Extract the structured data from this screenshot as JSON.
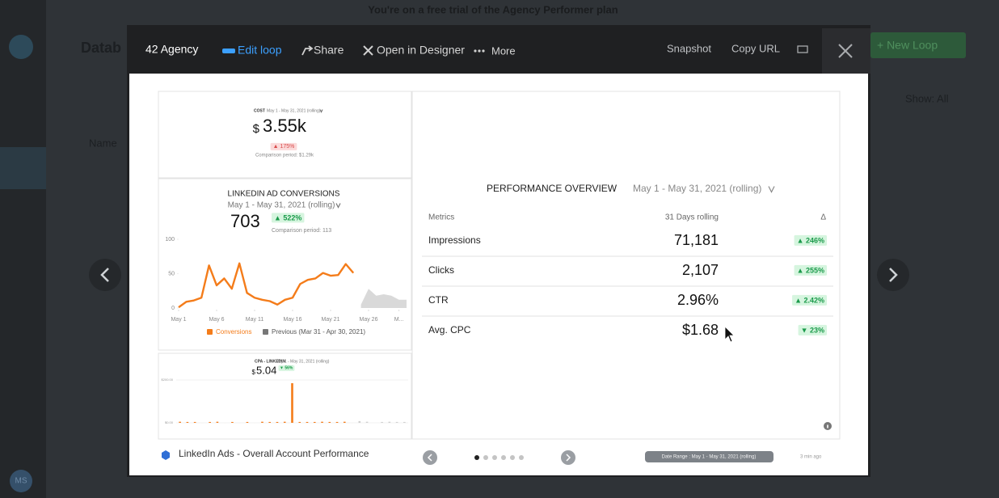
{
  "background": {
    "banner": "You're on a free trial of the Agency Performer plan",
    "page_title": "Datab",
    "new_loop": "+ New Loop",
    "show": "Show: All",
    "name_col": "Name",
    "avatar": "MS"
  },
  "toolbar": {
    "agency": "42 Agency",
    "edit_loop": "Edit loop",
    "share": "Share",
    "open_in_designer": "Open in Designer",
    "more": "More",
    "snapshot": "Snapshot",
    "copy_url": "Copy URL"
  },
  "cost": {
    "label": "COST",
    "date": "May 1 - May 31, 2021 (rolling)",
    "currency": "$",
    "value": "3.55k",
    "change": "▲ 175%",
    "comparison": "Comparison period: $1.29k"
  },
  "conversions": {
    "title": "LINKEDIN AD CONVERSIONS",
    "date": "May 1 - May 31, 2021 (rolling)",
    "value": "703",
    "change": "▲ 522%",
    "comparison": "Comparison period: 113",
    "chart": {
      "type": "line",
      "x": [
        1,
        2,
        3,
        4,
        5,
        6,
        7,
        8,
        9,
        10,
        11,
        12,
        13,
        14,
        15,
        16,
        17,
        18,
        19,
        20,
        21,
        22,
        23,
        24,
        25,
        26,
        27,
        28,
        29,
        30,
        31
      ],
      "xlim": [
        1,
        31
      ],
      "xticks": [
        {
          "value": 1,
          "label": "May 1"
        },
        {
          "value": 6,
          "label": "May 6"
        },
        {
          "value": 11,
          "label": "May 11"
        },
        {
          "value": 16,
          "label": "May 16"
        },
        {
          "value": 21,
          "label": "May 21"
        },
        {
          "value": 26,
          "label": "May 26"
        },
        {
          "value": 30,
          "label": "M..."
        }
      ],
      "ylim": [
        0,
        100
      ],
      "yticks": [
        0,
        50,
        100
      ],
      "series": [
        {
          "name": "Conversions",
          "color": "#f47c1a",
          "values": [
            1,
            9,
            11,
            15,
            62,
            33,
            43,
            28,
            65,
            22,
            15,
            12,
            10,
            5,
            12,
            15,
            35,
            41,
            43,
            51,
            47,
            48,
            64,
            51,
            null,
            null,
            null,
            null,
            null,
            null,
            null
          ]
        },
        {
          "name": "Previous (Mar 31 - Apr 30, 2021)",
          "color": "#d0d0d0",
          "values": [
            null,
            null,
            null,
            null,
            null,
            null,
            null,
            null,
            null,
            null,
            null,
            null,
            null,
            null,
            null,
            null,
            null,
            null,
            null,
            null,
            null,
            null,
            null,
            null,
            5,
            28,
            18,
            20,
            18,
            12,
            12
          ]
        }
      ]
    }
  },
  "cpa": {
    "title": "CPA - LINKEDIN",
    "date": "May 1 - May 31, 2021 (rolling)",
    "currency": "$",
    "value": "5.04",
    "change": "▼ 56%",
    "chart": {
      "type": "bar",
      "x": [
        1,
        2,
        3,
        4,
        5,
        6,
        7,
        8,
        9,
        10,
        11,
        12,
        13,
        14,
        15,
        16,
        17,
        18,
        19,
        20,
        21,
        22,
        23,
        24,
        25,
        26,
        27,
        28,
        29,
        30,
        31
      ],
      "xlim": [
        0.5,
        31.5
      ],
      "ylim": [
        0,
        200
      ],
      "yticks": [
        {
          "value": 0,
          "label": "$0.00"
        },
        {
          "value": 200,
          "label": "$200.00"
        }
      ],
      "series": [
        {
          "color": "#f47c1a",
          "values": [
            5,
            4,
            4,
            0,
            4,
            5,
            0,
            4,
            0,
            4,
            0,
            5,
            4,
            4,
            5,
            185,
            4,
            4,
            4,
            5,
            4,
            4,
            5,
            0,
            null,
            null,
            null,
            null,
            null,
            null,
            null
          ]
        },
        {
          "color": "#d0d0d0",
          "values": [
            null,
            null,
            null,
            null,
            null,
            null,
            null,
            null,
            null,
            null,
            null,
            null,
            null,
            null,
            null,
            null,
            null,
            null,
            null,
            null,
            null,
            null,
            null,
            null,
            8,
            5,
            0,
            4,
            5,
            4,
            4
          ]
        }
      ]
    }
  },
  "overview": {
    "title": "PERFORMANCE OVERVIEW",
    "date": "May 1 - May 31, 2021 (rolling)",
    "columns": [
      "Metrics",
      "31 Days rolling",
      "Δ"
    ],
    "rows": [
      [
        "Impressions",
        "71,181",
        "▲ 246%"
      ],
      [
        "Clicks",
        "2,107",
        "▲ 255%"
      ],
      [
        "CTR",
        "2.96%",
        "▲ 2.42%"
      ],
      [
        "Avg. CPC",
        "$1.68",
        "▼ 23%"
      ]
    ]
  },
  "footer": {
    "name": "LinkedIn Ads - Overall Account Performance",
    "date_range": "Date Range : May 1 - May 31, 2021 (rolling)",
    "updated": "3 min ago"
  }
}
